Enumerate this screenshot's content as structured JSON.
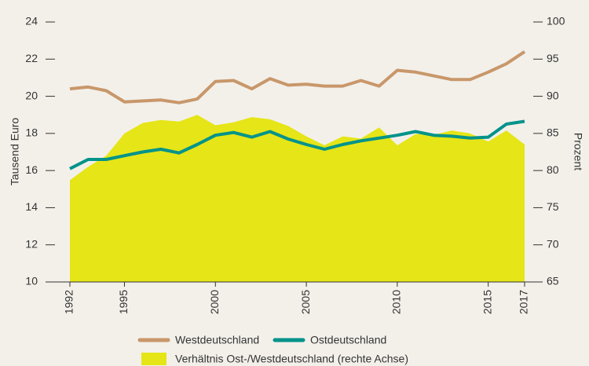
{
  "chart_data": {
    "type": "line",
    "y_label": "Tausend Euro",
    "y2_label": "Prozent",
    "x": [
      1992,
      1993,
      1994,
      1995,
      1996,
      1997,
      1998,
      1999,
      2000,
      2001,
      2002,
      2003,
      2004,
      2005,
      2006,
      2007,
      2008,
      2009,
      2010,
      2011,
      2012,
      2013,
      2014,
      2015,
      2016,
      2017
    ],
    "xlim": [
      1992,
      2017
    ],
    "xticks": [
      1992,
      1995,
      2000,
      2005,
      2010,
      2015,
      2017
    ],
    "ylim": [
      10,
      24
    ],
    "yticks": [
      10,
      12,
      14,
      16,
      18,
      20,
      22,
      24
    ],
    "y2lim": [
      65,
      100
    ],
    "y2ticks": [
      65,
      70,
      75,
      80,
      85,
      90,
      95,
      100
    ],
    "series": [
      {
        "name": "Verhältnis Ost-/Westdeutschland (rechte Achse)",
        "color": "#e5e517",
        "axis": "y2",
        "kind": "area",
        "values": [
          78.7,
          80.5,
          82,
          85,
          86.4,
          86.8,
          86.6,
          87.5,
          86.1,
          86.5,
          87.2,
          86.9,
          86,
          84.6,
          83.4,
          84.6,
          84.3,
          85.8,
          83.4,
          84.9,
          84.8,
          85.4,
          85,
          83.9,
          85.4,
          83.5
        ]
      },
      {
        "name": "Westdeutschland",
        "color": "#c8976a",
        "kind": "line",
        "values": [
          20.4,
          20.5,
          20.3,
          19.7,
          19.75,
          19.8,
          19.65,
          19.85,
          20.8,
          20.85,
          20.4,
          20.95,
          20.6,
          20.65,
          20.55,
          20.55,
          20.85,
          20.55,
          21.4,
          21.3,
          21.1,
          20.9,
          20.9,
          21.3,
          21.75,
          22.4
        ]
      },
      {
        "name": "Ostdeutschland",
        "color": "#00938a",
        "kind": "line",
        "values": [
          16.1,
          16.6,
          16.6,
          16.8,
          17.0,
          17.15,
          16.95,
          17.4,
          17.9,
          18.05,
          17.8,
          18.1,
          17.7,
          17.4,
          17.15,
          17.4,
          17.6,
          17.75,
          17.9,
          18.1,
          17.9,
          17.85,
          17.75,
          17.8,
          18.5,
          18.65
        ]
      }
    ]
  }
}
